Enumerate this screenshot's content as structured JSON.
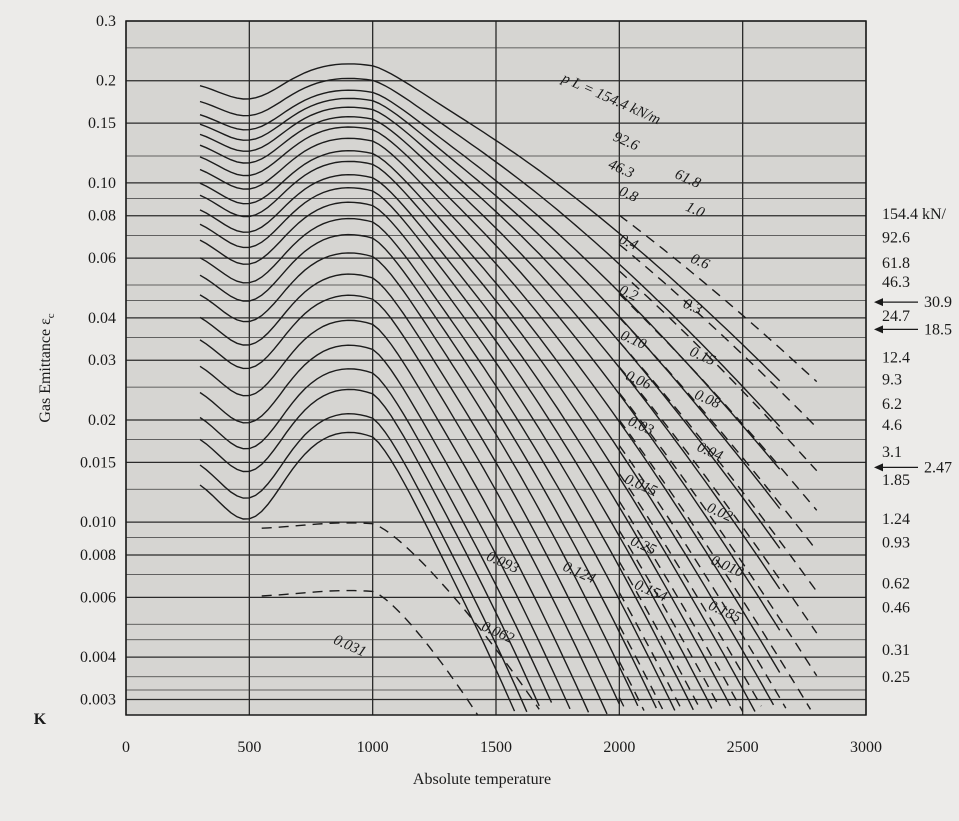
{
  "chart_data": {
    "type": "line",
    "title": "",
    "xlabel": "Absolute temperature",
    "ylabel": "Gas Emittance ε",
    "ylabel_subscript": "c",
    "x_unit_label": "K",
    "xlim": [
      0,
      3000
    ],
    "ylim": [
      0.0027,
      0.3
    ],
    "y_scale": "log",
    "grid": true,
    "x_ticks": [
      0,
      500,
      1000,
      1500,
      2000,
      2500,
      3000
    ],
    "x_tick_labels": [
      "0",
      "500",
      "1000",
      "1500",
      "2000",
      "2500",
      "3000"
    ],
    "y_ticks": [
      0.3,
      0.2,
      0.15,
      0.1,
      0.08,
      0.06,
      0.04,
      0.03,
      0.02,
      0.015,
      0.01,
      0.008,
      0.006,
      0.004,
      0.003
    ],
    "y_tick_labels": [
      "0.3",
      "0.2",
      "0.15",
      "0.10",
      "0.08",
      "0.06",
      "0.04",
      "0.03",
      "0.02",
      "0.015",
      "0.010",
      "0.008",
      "0.006",
      "0.004",
      "0.003"
    ],
    "right_labels": [
      {
        "text": "154.4 kN/",
        "y": 0.081
      },
      {
        "text": "92.6",
        "y": 0.069
      },
      {
        "text": "61.8",
        "y": 0.058
      },
      {
        "text": "46.3",
        "y": 0.051
      },
      {
        "text": "24.7",
        "y": 0.0405
      },
      {
        "text": "12.4",
        "y": 0.0306
      },
      {
        "text": "9.3",
        "y": 0.0263
      },
      {
        "text": "6.2",
        "y": 0.0223
      },
      {
        "text": "4.6",
        "y": 0.0193
      },
      {
        "text": "3.1",
        "y": 0.0161
      },
      {
        "text": "1.85",
        "y": 0.0133
      },
      {
        "text": "1.24",
        "y": 0.0102
      },
      {
        "text": "0.93",
        "y": 0.0087
      },
      {
        "text": "0.62",
        "y": 0.0066
      },
      {
        "text": "0.46",
        "y": 0.0056
      },
      {
        "text": "0.31",
        "y": 0.0042
      },
      {
        "text": "0.25",
        "y": 0.0035
      }
    ],
    "arrow_labels": [
      {
        "text": "30.9",
        "y": 0.0445
      },
      {
        "text": "18.5",
        "y": 0.037
      },
      {
        "text": "2.47",
        "y": 0.0145
      }
    ],
    "curve_labels": [
      {
        "text": "p L = 154.4 kN/m",
        "x": 1960,
        "y": 0.172
      },
      {
        "text": "92.6",
        "x": 2020,
        "y": 0.129
      },
      {
        "text": "61.8",
        "x": 2270,
        "y": 0.1
      },
      {
        "text": "46.3",
        "x": 2000,
        "y": 0.107
      },
      {
        "text": "0.8",
        "x": 2030,
        "y": 0.09
      },
      {
        "text": "1.0",
        "x": 2300,
        "y": 0.081
      },
      {
        "text": "0.4",
        "x": 2030,
        "y": 0.065
      },
      {
        "text": "0.6",
        "x": 2320,
        "y": 0.057
      },
      {
        "text": "0.2",
        "x": 2030,
        "y": 0.046
      },
      {
        "text": "0.3",
        "x": 2290,
        "y": 0.042
      },
      {
        "text": "0.10",
        "x": 2050,
        "y": 0.0335
      },
      {
        "text": "0.15",
        "x": 2330,
        "y": 0.03
      },
      {
        "text": "0.06",
        "x": 2070,
        "y": 0.0255
      },
      {
        "text": "0.08",
        "x": 2350,
        "y": 0.0224
      },
      {
        "text": "0.03",
        "x": 2080,
        "y": 0.0187
      },
      {
        "text": "0.04",
        "x": 2360,
        "y": 0.0157
      },
      {
        "text": "0.015",
        "x": 2080,
        "y": 0.0125
      },
      {
        "text": "0.02",
        "x": 2400,
        "y": 0.0104
      },
      {
        "text": "0.25",
        "x": 2090,
        "y": 0.0083
      },
      {
        "text": "0.010",
        "x": 2430,
        "y": 0.0072
      },
      {
        "text": "0.093",
        "x": 1520,
        "y": 0.0074
      },
      {
        "text": "0.124",
        "x": 1830,
        "y": 0.0069
      },
      {
        "text": "0.154",
        "x": 2120,
        "y": 0.0061
      },
      {
        "text": "0.185",
        "x": 2420,
        "y": 0.0053
      },
      {
        "text": "0.062",
        "x": 1500,
        "y": 0.0046
      },
      {
        "text": "0.031",
        "x": 900,
        "y": 0.0042
      }
    ]
  }
}
